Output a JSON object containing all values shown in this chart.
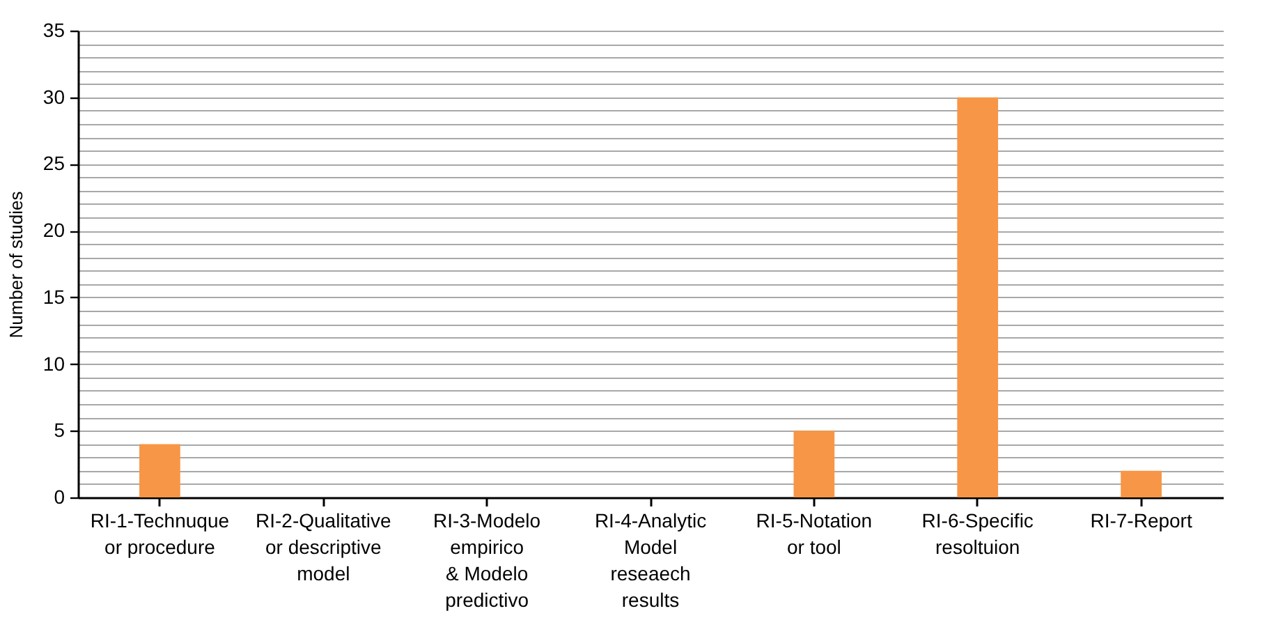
{
  "chart_data": {
    "type": "bar",
    "ylabel": "Number of studies",
    "categories": [
      "RI-1-Technuque\nor procedure",
      "RI-2-Qualitative\nor descriptive\nmodel",
      "RI-3-Modelo\nempirico\n& Modelo\npredictivo",
      "RI-4-Analytic\nModel\nreseaech\nresults",
      "RI-5-Notation\nor tool",
      "RI-6-Specific\nresoltuion",
      "RI-7-Report"
    ],
    "series": [
      {
        "color": "#f79646",
        "values": [
          4,
          0,
          0,
          0,
          5,
          30,
          2
        ]
      }
    ],
    "ylim": [
      0,
      35
    ],
    "yticks": [
      0,
      {
        "value": 1,
        "label": null
      },
      {
        "value": 2,
        "label": null
      },
      {
        "value": 3,
        "label": null
      },
      {
        "value": 4,
        "label": null
      },
      5,
      {
        "value": 6,
        "label": null
      },
      {
        "value": 7,
        "label": null
      },
      {
        "value": 8,
        "label": null
      },
      {
        "value": 9,
        "label": null
      },
      10,
      {
        "value": 11,
        "label": null
      },
      {
        "value": 12,
        "label": null
      },
      {
        "value": 13,
        "label": null
      },
      {
        "value": 14,
        "label": null
      },
      15,
      {
        "value": 16,
        "label": null
      },
      {
        "value": 17,
        "label": null
      },
      {
        "value": 18,
        "label": null
      },
      {
        "value": 19,
        "label": null
      },
      20,
      {
        "value": 21,
        "label": null
      },
      {
        "value": 22,
        "label": null
      },
      {
        "value": 23,
        "label": null
      },
      {
        "value": 24,
        "label": null
      },
      25,
      {
        "value": 26,
        "label": null
      },
      {
        "value": 27,
        "label": null
      },
      {
        "value": 28,
        "label": null
      },
      {
        "value": 29,
        "label": null
      },
      30,
      {
        "value": 31,
        "label": null
      },
      {
        "value": 32,
        "label": null
      },
      {
        "value": 33,
        "label": null
      },
      {
        "value": 34,
        "label": null
      },
      35
    ],
    "grid": "y"
  }
}
